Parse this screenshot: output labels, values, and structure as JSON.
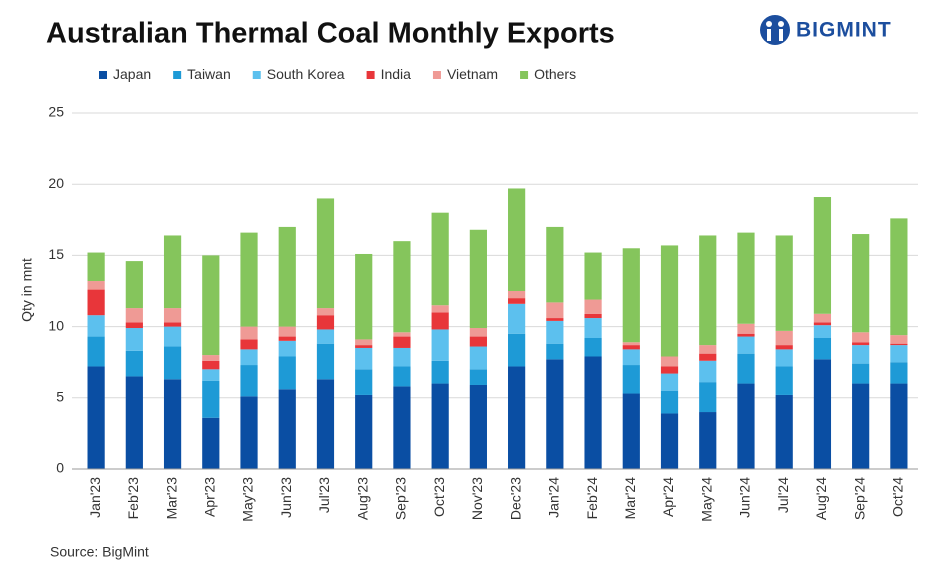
{
  "chart_data": {
    "type": "stacked_bar",
    "title": "Australian Thermal Coal Monthly Exports",
    "logo": "BIGMINT",
    "y_label": "Qty in mnt",
    "source": "Source: BigMint",
    "categories": [
      "Jan'23",
      "Feb'23",
      "Mar'23",
      "Apr'23",
      "May'23",
      "Jun'23",
      "Jul'23",
      "Aug'23",
      "Sep'23",
      "Oct'23",
      "Nov'23",
      "Dec'23",
      "Jan'24",
      "Feb'24",
      "Mar'24",
      "Apr'24",
      "May'24",
      "Jun'24",
      "Jul'24",
      "Aug'24",
      "Sep'24",
      "Oct'24"
    ],
    "series": [
      {
        "name": "Japan",
        "color": "#0a4ea3",
        "values": [
          7.2,
          6.5,
          6.3,
          3.6,
          5.1,
          5.6,
          6.3,
          5.2,
          5.8,
          6.0,
          5.9,
          7.2,
          7.7,
          7.9,
          5.3,
          3.9,
          4.0,
          6.0,
          5.2,
          7.7,
          6.0,
          6.0
        ]
      },
      {
        "name": "Taiwan",
        "color": "#1e9ad6",
        "values": [
          2.1,
          1.8,
          2.3,
          2.6,
          2.2,
          2.3,
          2.5,
          1.8,
          1.4,
          1.6,
          1.1,
          2.3,
          1.1,
          1.3,
          2.0,
          1.6,
          2.1,
          2.1,
          2.0,
          1.5,
          1.4,
          1.5
        ]
      },
      {
        "name": "South Korea",
        "color": "#5cc0ee",
        "values": [
          1.5,
          1.6,
          1.4,
          0.8,
          1.1,
          1.1,
          1.0,
          1.5,
          1.3,
          2.2,
          1.6,
          2.1,
          1.6,
          1.4,
          1.1,
          1.2,
          1.5,
          1.2,
          1.2,
          0.9,
          1.3,
          1.2
        ]
      },
      {
        "name": "India",
        "color": "#e8363a",
        "values": [
          1.8,
          0.4,
          0.3,
          0.6,
          0.7,
          0.3,
          1.0,
          0.2,
          0.8,
          1.2,
          0.7,
          0.4,
          0.2,
          0.3,
          0.3,
          0.5,
          0.5,
          0.2,
          0.3,
          0.2,
          0.2,
          0.1
        ]
      },
      {
        "name": "Vietnam",
        "color": "#ef9a95",
        "values": [
          0.6,
          1.0,
          1.0,
          0.4,
          0.9,
          0.7,
          0.5,
          0.4,
          0.3,
          0.5,
          0.6,
          0.5,
          1.1,
          1.0,
          0.2,
          0.7,
          0.6,
          0.7,
          1.0,
          0.6,
          0.7,
          0.6
        ]
      },
      {
        "name": "Others",
        "color": "#85c55c",
        "values": [
          2.0,
          3.3,
          5.1,
          7.0,
          6.6,
          7.0,
          7.7,
          6.0,
          6.4,
          6.5,
          6.9,
          7.2,
          5.3,
          3.3,
          6.6,
          7.8,
          7.7,
          6.4,
          6.7,
          8.2,
          6.9,
          8.2
        ]
      }
    ],
    "ylim": [
      0,
      25
    ],
    "yticks": [
      0,
      5,
      10,
      15,
      20,
      25
    ],
    "grid": true
  }
}
